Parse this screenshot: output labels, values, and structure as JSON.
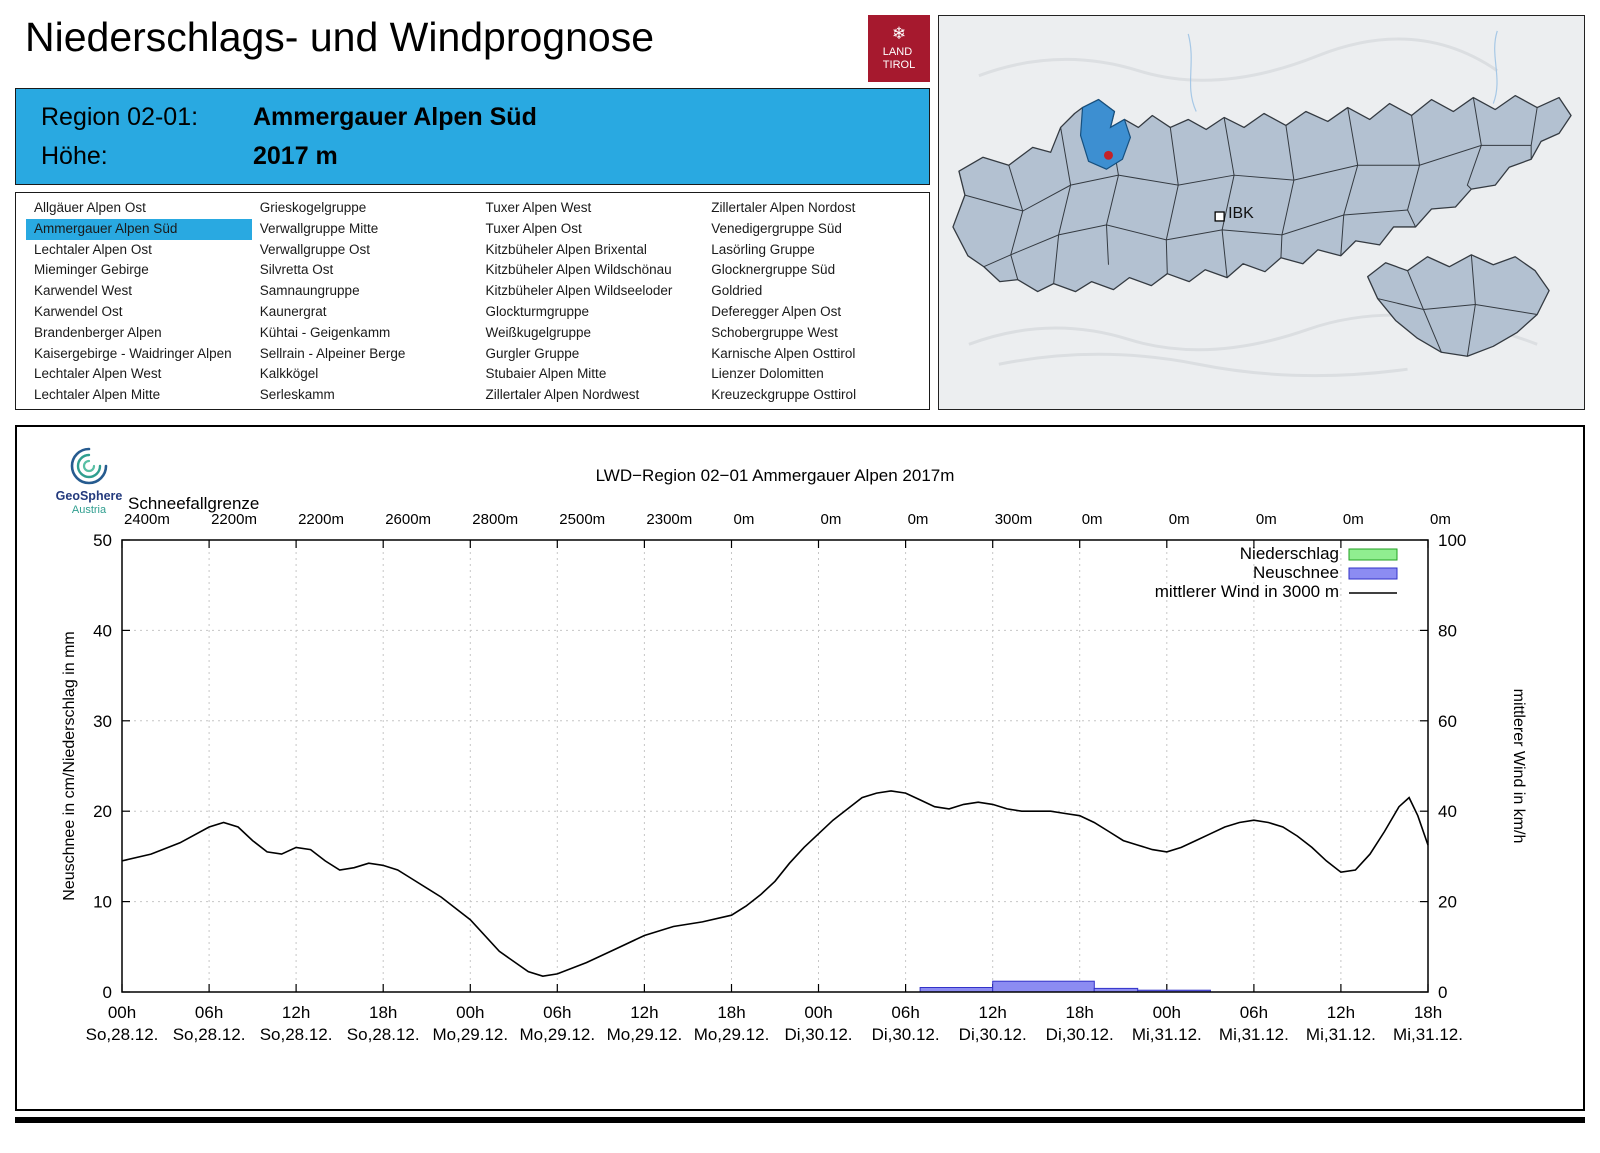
{
  "page": {
    "title": "Niederschlags- und Windprognose"
  },
  "logo": {
    "line1": "LAND",
    "line2": "TIROL",
    "snowflake": "❄",
    "color": "#a6192e"
  },
  "header": {
    "region_label": "Region 02-01:",
    "region_value": "Ammergauer Alpen Süd",
    "altitude_label": "Höhe:",
    "altitude_value": "2017 m",
    "accent_color": "#29a9e1"
  },
  "map": {
    "ibk_label": "IBK",
    "highlight_color": "#3d8fd1",
    "marker_color": "#c42127",
    "region_fill": "#b3c1d1"
  },
  "region_list": {
    "selected": "Ammergauer Alpen Süd",
    "columns": [
      [
        "Allgäuer Alpen Ost",
        "Ammergauer Alpen Süd",
        "Lechtaler Alpen Ost",
        "Mieminger Gebirge",
        "Karwendel West",
        "Karwendel Ost",
        "Brandenberger Alpen",
        "Kaisergebirge - Waidringer Alpen",
        "Lechtaler Alpen West",
        "Lechtaler Alpen Mitte"
      ],
      [
        "Grieskogelgruppe",
        "Verwallgruppe Mitte",
        "Verwallgruppe Ost",
        "Silvretta Ost",
        "Samnaungruppe",
        "Kaunergrat",
        "Kühtai - Geigenkamm",
        "Sellrain - Alpeiner Berge",
        "Kalkkögel",
        "Serleskamm"
      ],
      [
        "Tuxer Alpen West",
        "Tuxer Alpen Ost",
        "Kitzbüheler Alpen Brixental",
        "Kitzbüheler Alpen Wildschönau",
        "Kitzbüheler Alpen Wildseeloder",
        "Glockturmgruppe",
        "Weißkugelgruppe",
        "Gurgler Gruppe",
        "Stubaier Alpen Mitte",
        "Zillertaler Alpen Nordwest"
      ],
      [
        "Zillertaler Alpen Nordost",
        "Venedigergruppe Süd",
        "Lasörling Gruppe",
        "Glocknergruppe Süd",
        "Goldried",
        "Deferegger Alpen Ost",
        "Schobergruppe West",
        "Karnische Alpen Osttirol",
        "Lienzer Dolomitten",
        "Kreuzeckgruppe Osttirol"
      ]
    ]
  },
  "chart_ui": {
    "logo_line1": "GeoSphere",
    "logo_line2": "Austria",
    "title": "LWD−Region 02−01 Ammergauer Alpen 2017m",
    "snowline_label": "Schneefallgrenze",
    "y_left_label": "Neuschnee in cm/Niederschlag in mm",
    "y_right_label": "mittlerer Wind in km/h",
    "legend": {
      "precip": "Niederschlag",
      "snow": "Neuschnee",
      "wind": "mittlerer Wind in 3000 m"
    },
    "colors": {
      "precip": "#90ee90",
      "snow": "#8c8cf2",
      "wind": "#000000"
    }
  },
  "chart_data": {
    "type": "line+bar",
    "x_hours_range": [
      0,
      90
    ],
    "x_tick_step_hours": 6,
    "x_times": [
      "00h",
      "06h",
      "12h",
      "18h",
      "00h",
      "06h",
      "12h",
      "18h",
      "00h",
      "06h",
      "12h",
      "18h",
      "00h",
      "06h",
      "12h",
      "18h"
    ],
    "x_dates": [
      "So,28.12.",
      "So,28.12.",
      "So,28.12.",
      "So,28.12.",
      "Mo,29.12.",
      "Mo,29.12.",
      "Mo,29.12.",
      "Mo,29.12.",
      "Di,30.12.",
      "Di,30.12.",
      "Di,30.12.",
      "Di,30.12.",
      "Mi,31.12.",
      "Mi,31.12.",
      "Mi,31.12.",
      "Mi,31.12."
    ],
    "snowline_per_tick": [
      "2400m",
      "2200m",
      "2200m",
      "2600m",
      "2800m",
      "2500m",
      "2300m",
      "0m",
      "0m",
      "0m",
      "300m",
      "0m",
      "0m",
      "0m",
      "0m",
      "0m"
    ],
    "y_left": {
      "range": [
        0,
        50
      ],
      "ticks": [
        0,
        10,
        20,
        30,
        40,
        50
      ]
    },
    "y_right": {
      "range": [
        0,
        100
      ],
      "ticks": [
        0,
        20,
        40,
        60,
        80,
        100
      ]
    },
    "wind_kmh_series": [
      [
        0,
        29
      ],
      [
        2,
        30.5
      ],
      [
        4,
        33
      ],
      [
        6,
        36.5
      ],
      [
        7,
        37.5
      ],
      [
        8,
        36.5
      ],
      [
        9,
        33.5
      ],
      [
        10,
        31
      ],
      [
        11,
        30.5
      ],
      [
        12,
        32
      ],
      [
        13,
        31.5
      ],
      [
        14,
        29
      ],
      [
        15,
        27
      ],
      [
        16,
        27.5
      ],
      [
        17,
        28.5
      ],
      [
        18,
        28
      ],
      [
        19,
        27
      ],
      [
        20,
        25
      ],
      [
        22,
        21
      ],
      [
        24,
        16
      ],
      [
        26,
        9
      ],
      [
        28,
        4.5
      ],
      [
        29,
        3.5
      ],
      [
        30,
        4
      ],
      [
        32,
        6.5
      ],
      [
        34,
        9.5
      ],
      [
        36,
        12.5
      ],
      [
        38,
        14.5
      ],
      [
        40,
        15.5
      ],
      [
        42,
        17
      ],
      [
        43,
        19
      ],
      [
        44,
        21.5
      ],
      [
        45,
        24.5
      ],
      [
        46,
        28.5
      ],
      [
        47,
        32
      ],
      [
        48,
        35
      ],
      [
        49,
        38
      ],
      [
        50,
        40.5
      ],
      [
        51,
        43
      ],
      [
        52,
        44
      ],
      [
        53,
        44.5
      ],
      [
        54,
        44
      ],
      [
        55,
        42.5
      ],
      [
        56,
        41
      ],
      [
        57,
        40.5
      ],
      [
        58,
        41.5
      ],
      [
        59,
        42
      ],
      [
        60,
        41.5
      ],
      [
        61,
        40.5
      ],
      [
        62,
        40
      ],
      [
        63,
        40
      ],
      [
        64,
        40
      ],
      [
        65,
        39.5
      ],
      [
        66,
        39
      ],
      [
        67,
        37.5
      ],
      [
        68,
        35.5
      ],
      [
        69,
        33.5
      ],
      [
        70,
        32.5
      ],
      [
        71,
        31.5
      ],
      [
        72,
        31
      ],
      [
        73,
        32
      ],
      [
        74,
        33.5
      ],
      [
        75,
        35
      ],
      [
        76,
        36.5
      ],
      [
        77,
        37.5
      ],
      [
        78,
        38
      ],
      [
        79,
        37.5
      ],
      [
        80,
        36.5
      ],
      [
        81,
        34.5
      ],
      [
        82,
        32
      ],
      [
        83,
        29
      ],
      [
        84,
        26.5
      ],
      [
        85,
        27
      ],
      [
        86,
        30.5
      ],
      [
        87,
        35.5
      ],
      [
        88,
        41
      ],
      [
        88.7,
        43
      ],
      [
        89.3,
        39
      ],
      [
        90,
        32.5
      ]
    ],
    "neuschnee_cm_bars": [
      {
        "from_hour": 55,
        "to_hour": 60,
        "cm": 0.5
      },
      {
        "from_hour": 60,
        "to_hour": 67,
        "cm": 1.2
      },
      {
        "from_hour": 67,
        "to_hour": 70,
        "cm": 0.4
      },
      {
        "from_hour": 70,
        "to_hour": 75,
        "cm": 0.2
      }
    ],
    "niederschlag_mm_bars": []
  }
}
